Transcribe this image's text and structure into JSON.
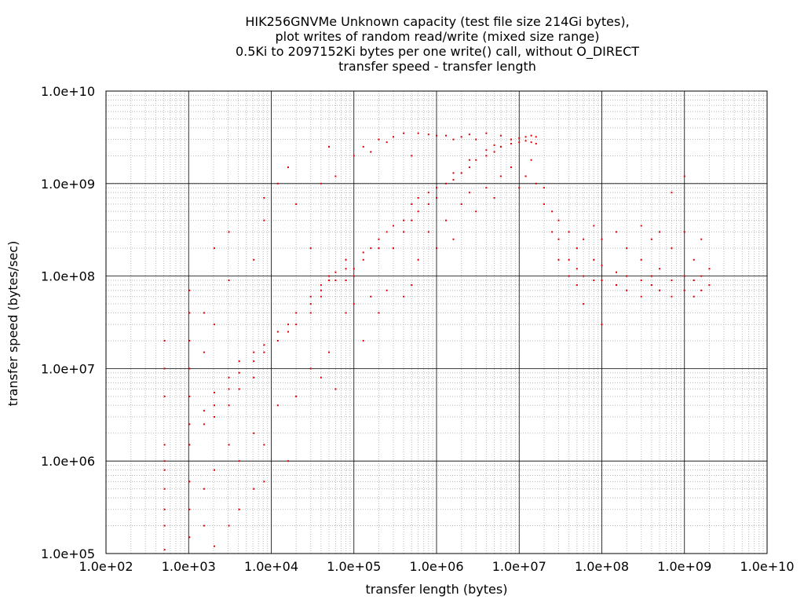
{
  "chart_data": {
    "type": "scatter",
    "title_lines": [
      "HIK256GNVMe Unknown capacity (test file size 214Gi bytes),",
      "plot writes of random read/write (mixed size range)",
      "0.5Ki to 2097152Ki bytes per one write() call, without O_DIRECT",
      "transfer speed - transfer length"
    ],
    "xlabel": "transfer length (bytes)",
    "ylabel": "transfer speed (bytes/sec)",
    "x_scale": "log",
    "y_scale": "log",
    "xlim": [
      100,
      10000000000
    ],
    "ylim": [
      100000,
      10000000000
    ],
    "x_ticks": [
      {
        "value": 100,
        "label": "1.0e+02"
      },
      {
        "value": 1000,
        "label": "1.0e+03"
      },
      {
        "value": 10000,
        "label": "1.0e+04"
      },
      {
        "value": 100000,
        "label": "1.0e+05"
      },
      {
        "value": 1000000,
        "label": "1.0e+06"
      },
      {
        "value": 10000000,
        "label": "1.0e+07"
      },
      {
        "value": 100000000,
        "label": "1.0e+08"
      },
      {
        "value": 1000000000,
        "label": "1.0e+09"
      },
      {
        "value": 10000000000,
        "label": "1.0e+10"
      }
    ],
    "y_ticks": [
      {
        "value": 100000,
        "label": "1.0e+05"
      },
      {
        "value": 1000000,
        "label": "1.0e+06"
      },
      {
        "value": 10000000,
        "label": "1.0e+07"
      },
      {
        "value": 100000000,
        "label": "1.0e+08"
      },
      {
        "value": 1000000000,
        "label": "1.0e+09"
      },
      {
        "value": 10000000000,
        "label": "1.0e+10"
      }
    ],
    "grid": true,
    "marker_color": "#e00000",
    "series": [
      {
        "points": [
          [
            512,
            110000
          ],
          [
            512,
            200000
          ],
          [
            512,
            300000
          ],
          [
            512,
            500000
          ],
          [
            512,
            800000
          ],
          [
            512,
            1000000
          ],
          [
            512,
            1500000
          ],
          [
            512,
            5000000
          ],
          [
            512,
            10000000
          ],
          [
            512,
            20000000
          ],
          [
            1024,
            150000
          ],
          [
            1024,
            300000
          ],
          [
            1024,
            600000
          ],
          [
            1024,
            1500000
          ],
          [
            1024,
            2500000
          ],
          [
            1024,
            5000000
          ],
          [
            1024,
            10000000
          ],
          [
            1024,
            20000000
          ],
          [
            1024,
            40000000
          ],
          [
            1024,
            70000000
          ],
          [
            1536,
            200000
          ],
          [
            1536,
            500000
          ],
          [
            1536,
            2500000
          ],
          [
            1536,
            3500000
          ],
          [
            1536,
            15000000
          ],
          [
            1536,
            40000000
          ],
          [
            2048,
            120000
          ],
          [
            2048,
            800000
          ],
          [
            2048,
            3000000
          ],
          [
            2048,
            4000000
          ],
          [
            2048,
            5500000
          ],
          [
            2048,
            30000000
          ],
          [
            2048,
            200000000
          ],
          [
            3072,
            200000
          ],
          [
            3072,
            1500000
          ],
          [
            3072,
            4000000
          ],
          [
            3072,
            6000000
          ],
          [
            3072,
            8000000
          ],
          [
            3072,
            90000000
          ],
          [
            3072,
            300000000
          ],
          [
            4096,
            300000
          ],
          [
            4096,
            1000000
          ],
          [
            4096,
            6000000
          ],
          [
            4096,
            9000000
          ],
          [
            4096,
            12000000
          ],
          [
            6144,
            500000
          ],
          [
            6144,
            2000000
          ],
          [
            6144,
            8000000
          ],
          [
            6144,
            12000000
          ],
          [
            6144,
            15000000
          ],
          [
            6144,
            150000000
          ],
          [
            8192,
            600000
          ],
          [
            8192,
            1500000
          ],
          [
            8192,
            15000000
          ],
          [
            8192,
            18000000
          ],
          [
            8192,
            400000000
          ],
          [
            8192,
            700000000
          ],
          [
            12000,
            4000000
          ],
          [
            12000,
            20000000
          ],
          [
            12000,
            25000000
          ],
          [
            12000,
            1000000000
          ],
          [
            16000,
            1000000
          ],
          [
            16000,
            25000000
          ],
          [
            16000,
            30000000
          ],
          [
            16000,
            1500000000
          ],
          [
            20000,
            5000000
          ],
          [
            20000,
            30000000
          ],
          [
            20000,
            40000000
          ],
          [
            20000,
            600000000
          ],
          [
            30000,
            10000000
          ],
          [
            30000,
            40000000
          ],
          [
            30000,
            50000000
          ],
          [
            30000,
            60000000
          ],
          [
            30000,
            200000000
          ],
          [
            40000,
            8000000
          ],
          [
            40000,
            60000000
          ],
          [
            40000,
            70000000
          ],
          [
            40000,
            80000000
          ],
          [
            40000,
            1000000000
          ],
          [
            50000,
            15000000
          ],
          [
            50000,
            90000000
          ],
          [
            50000,
            100000000
          ],
          [
            50000,
            2500000000
          ],
          [
            60000,
            6000000
          ],
          [
            60000,
            90000000
          ],
          [
            60000,
            110000000
          ],
          [
            60000,
            1200000000
          ],
          [
            80000,
            40000000
          ],
          [
            80000,
            90000000
          ],
          [
            80000,
            120000000
          ],
          [
            80000,
            150000000
          ],
          [
            100000,
            50000000
          ],
          [
            100000,
            100000000
          ],
          [
            100000,
            120000000
          ],
          [
            100000,
            2000000000
          ],
          [
            130000,
            20000000
          ],
          [
            130000,
            150000000
          ],
          [
            130000,
            180000000
          ],
          [
            130000,
            2500000000
          ],
          [
            160000,
            60000000
          ],
          [
            160000,
            200000000
          ],
          [
            160000,
            2200000000
          ],
          [
            200000,
            40000000
          ],
          [
            200000,
            200000000
          ],
          [
            200000,
            250000000
          ],
          [
            200000,
            3000000000
          ],
          [
            250000,
            70000000
          ],
          [
            250000,
            300000000
          ],
          [
            250000,
            2800000000
          ],
          [
            300000,
            200000000
          ],
          [
            300000,
            350000000
          ],
          [
            300000,
            3200000000
          ],
          [
            400000,
            60000000
          ],
          [
            400000,
            300000000
          ],
          [
            400000,
            400000000
          ],
          [
            400000,
            3500000000
          ],
          [
            500000,
            80000000
          ],
          [
            500000,
            400000000
          ],
          [
            500000,
            600000000
          ],
          [
            500000,
            2000000000
          ],
          [
            600000,
            150000000
          ],
          [
            600000,
            500000000
          ],
          [
            600000,
            700000000
          ],
          [
            600000,
            3500000000
          ],
          [
            800000,
            300000000
          ],
          [
            800000,
            600000000
          ],
          [
            800000,
            800000000
          ],
          [
            800000,
            3400000000
          ],
          [
            1000000,
            200000000
          ],
          [
            1000000,
            700000000
          ],
          [
            1000000,
            900000000
          ],
          [
            1000000,
            3300000000
          ],
          [
            1300000,
            400000000
          ],
          [
            1300000,
            1000000000
          ],
          [
            1300000,
            3300000000
          ],
          [
            1600000,
            250000000
          ],
          [
            1600000,
            1100000000
          ],
          [
            1600000,
            1300000000
          ],
          [
            1600000,
            3000000000
          ],
          [
            2000000,
            600000000
          ],
          [
            2000000,
            1300000000
          ],
          [
            2000000,
            3200000000
          ],
          [
            2500000,
            800000000
          ],
          [
            2500000,
            1500000000
          ],
          [
            2500000,
            1800000000
          ],
          [
            2500000,
            3400000000
          ],
          [
            3000000,
            500000000
          ],
          [
            3000000,
            1800000000
          ],
          [
            3000000,
            3000000000
          ],
          [
            4000000,
            900000000
          ],
          [
            4000000,
            2000000000
          ],
          [
            4000000,
            2300000000
          ],
          [
            4000000,
            3500000000
          ],
          [
            5000000,
            700000000
          ],
          [
            5000000,
            2200000000
          ],
          [
            5000000,
            2600000000
          ],
          [
            6000000,
            1200000000
          ],
          [
            6000000,
            2500000000
          ],
          [
            6000000,
            3300000000
          ],
          [
            8000000,
            1500000000
          ],
          [
            8000000,
            2700000000
          ],
          [
            8000000,
            3000000000
          ],
          [
            10000000,
            900000000
          ],
          [
            10000000,
            2800000000
          ],
          [
            10000000,
            3100000000
          ],
          [
            12000000,
            1200000000
          ],
          [
            12000000,
            2900000000
          ],
          [
            12000000,
            3200000000
          ],
          [
            14000000,
            1800000000
          ],
          [
            14000000,
            2800000000
          ],
          [
            14000000,
            3300000000
          ],
          [
            16000000,
            1000000000
          ],
          [
            16000000,
            2700000000
          ],
          [
            16000000,
            3200000000
          ],
          [
            20000000,
            600000000
          ],
          [
            20000000,
            900000000
          ],
          [
            25000000,
            300000000
          ],
          [
            25000000,
            500000000
          ],
          [
            30000000,
            150000000
          ],
          [
            30000000,
            250000000
          ],
          [
            30000000,
            400000000
          ],
          [
            40000000,
            100000000
          ],
          [
            40000000,
            150000000
          ],
          [
            40000000,
            300000000
          ],
          [
            50000000,
            80000000
          ],
          [
            50000000,
            120000000
          ],
          [
            50000000,
            200000000
          ],
          [
            60000000,
            50000000
          ],
          [
            60000000,
            100000000
          ],
          [
            60000000,
            250000000
          ],
          [
            80000000,
            90000000
          ],
          [
            80000000,
            150000000
          ],
          [
            80000000,
            350000000
          ],
          [
            100000000,
            30000000
          ],
          [
            100000000,
            90000000
          ],
          [
            100000000,
            130000000
          ],
          [
            100000000,
            250000000
          ],
          [
            150000000,
            80000000
          ],
          [
            150000000,
            110000000
          ],
          [
            150000000,
            300000000
          ],
          [
            200000000,
            70000000
          ],
          [
            200000000,
            100000000
          ],
          [
            200000000,
            200000000
          ],
          [
            300000000,
            60000000
          ],
          [
            300000000,
            90000000
          ],
          [
            300000000,
            150000000
          ],
          [
            300000000,
            350000000
          ],
          [
            400000000,
            80000000
          ],
          [
            400000000,
            100000000
          ],
          [
            400000000,
            250000000
          ],
          [
            500000000,
            70000000
          ],
          [
            500000000,
            120000000
          ],
          [
            500000000,
            300000000
          ],
          [
            700000000,
            60000000
          ],
          [
            700000000,
            90000000
          ],
          [
            700000000,
            200000000
          ],
          [
            700000000,
            800000000
          ],
          [
            1000000000,
            70000000
          ],
          [
            1000000000,
            100000000
          ],
          [
            1000000000,
            300000000
          ],
          [
            1000000000,
            1200000000
          ],
          [
            1300000000,
            60000000
          ],
          [
            1300000000,
            90000000
          ],
          [
            1300000000,
            150000000
          ],
          [
            1600000000,
            70000000
          ],
          [
            1600000000,
            100000000
          ],
          [
            1600000000,
            250000000
          ],
          [
            2000000000,
            80000000
          ],
          [
            2000000000,
            120000000
          ]
        ]
      }
    ]
  }
}
